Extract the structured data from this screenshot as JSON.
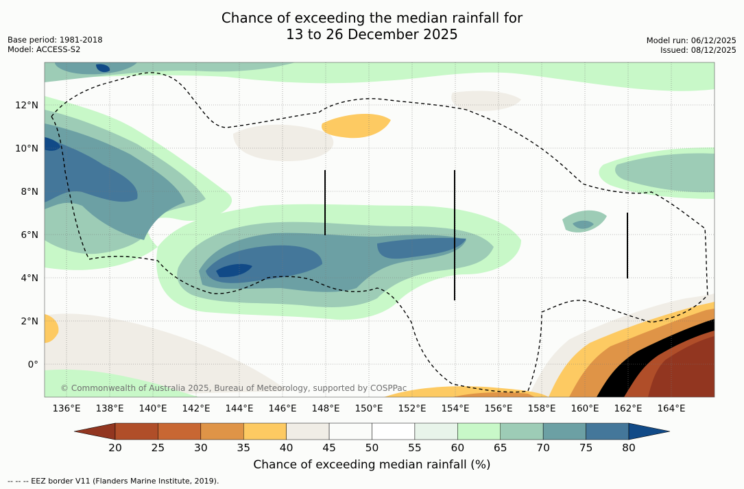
{
  "header": {
    "title_line1": "Chance of exceeding the median rainfall for",
    "title_line2": "13 to 26 December 2025",
    "base_period": "Base period: 1981-2018",
    "model": "Model: ACCESS-S2",
    "model_run": "Model run: 06/12/2025",
    "issued": "Issued: 08/12/2025"
  },
  "map": {
    "lon_ticks": [
      "136°E",
      "138°E",
      "140°E",
      "142°E",
      "144°E",
      "146°E",
      "148°E",
      "150°E",
      "152°E",
      "154°E",
      "156°E",
      "158°E",
      "160°E",
      "162°E",
      "164°E"
    ],
    "lat_ticks": [
      "12°N",
      "10°N",
      "8°N",
      "6°N",
      "4°N",
      "2°N",
      "0°"
    ],
    "copyright": "© Commonwealth of Australia 2025, Bureau of Meteorology, supported by COSPPac"
  },
  "colorbar": {
    "labels": [
      "20",
      "25",
      "30",
      "35",
      "40",
      "45",
      "50",
      "55",
      "60",
      "65",
      "70",
      "75",
      "80"
    ],
    "colors": [
      "#923620",
      "#b04e29",
      "#c86733",
      "#df9447",
      "#fdca62",
      "#f0ede6",
      "#fbfcfa",
      "#ffffff",
      "#e8f4ea",
      "#c8f8c8",
      "#9dccb6",
      "#6ca0a4",
      "#44779a",
      "#114a87"
    ],
    "title": "Chance of exceeding median rainfall (%)"
  },
  "footnote": "--  --  -- EEZ border V11 (Flanders Marine Institute, 2019)."
}
